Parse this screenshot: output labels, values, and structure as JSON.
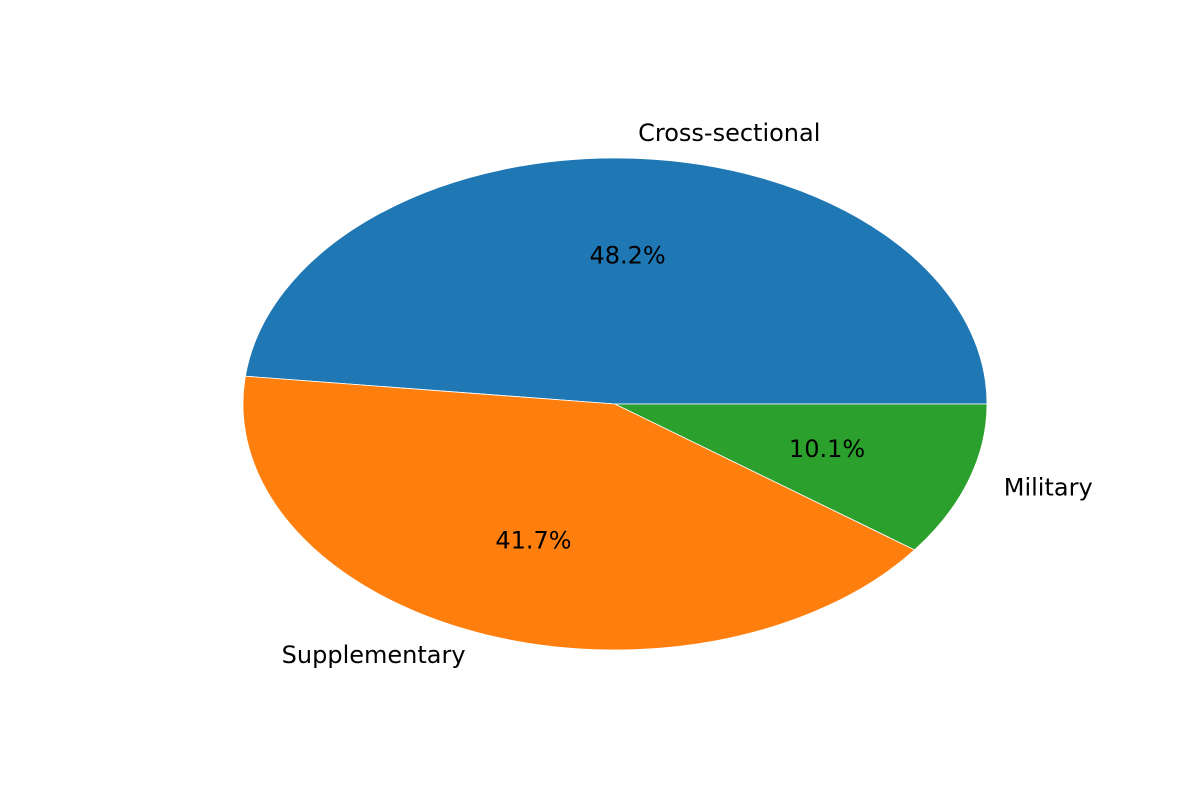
{
  "chart_data": {
    "type": "pie",
    "slices": [
      {
        "label": "Cross-sectional",
        "value": 48.2,
        "pct_label": "48.2%",
        "color": "#1f77b4"
      },
      {
        "label": "Supplementary",
        "value": 41.7,
        "pct_label": "41.7%",
        "color": "#ff7f0e"
      },
      {
        "label": "Military",
        "value": 10.1,
        "pct_label": "10.1%",
        "color": "#2ca02c"
      }
    ],
    "start_angle_deg": 0,
    "direction": "counterclockwise",
    "legend": "none"
  }
}
